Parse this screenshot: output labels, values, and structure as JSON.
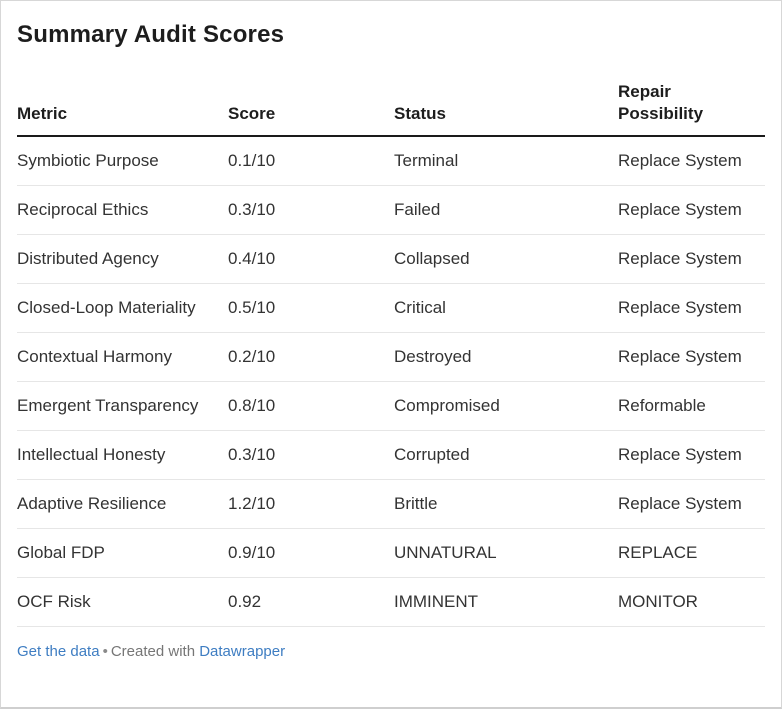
{
  "title": "Summary Audit Scores",
  "table": {
    "columns": [
      "Metric",
      "Score",
      "Status",
      "Repair Possibility"
    ],
    "rows": [
      {
        "metric": "Symbiotic Purpose",
        "score": "0.1/10",
        "status": "Terminal",
        "repair": "Replace System"
      },
      {
        "metric": "Reciprocal Ethics",
        "score": "0.3/10",
        "status": "Failed",
        "repair": "Replace System"
      },
      {
        "metric": "Distributed Agency",
        "score": "0.4/10",
        "status": "Collapsed",
        "repair": "Replace System"
      },
      {
        "metric": "Closed-Loop Materiality",
        "score": "0.5/10",
        "status": "Critical",
        "repair": "Replace System"
      },
      {
        "metric": "Contextual Harmony",
        "score": "0.2/10",
        "status": "Destroyed",
        "repair": "Replace System"
      },
      {
        "metric": "Emergent Transparency",
        "score": "0.8/10",
        "status": "Compromised",
        "repair": "Reformable"
      },
      {
        "metric": "Intellectual Honesty",
        "score": "0.3/10",
        "status": "Corrupted",
        "repair": "Replace System"
      },
      {
        "metric": "Adaptive Resilience",
        "score": "1.2/10",
        "status": "Brittle",
        "repair": "Replace System"
      },
      {
        "metric": "Global FDP",
        "score": "0.9/10",
        "status": "UNNATURAL",
        "repair": "REPLACE"
      },
      {
        "metric": "OCF Risk",
        "score": "0.92",
        "status": "IMMINENT",
        "repair": "MONITOR"
      }
    ]
  },
  "footer": {
    "get_data_label": "Get the data",
    "separator": "•",
    "created_with_label": "Created with",
    "brand_label": "Datawrapper"
  },
  "colors": {
    "link_blue": "#3e7dc2",
    "heading_text": "#1d1d1d",
    "body_text": "#333333",
    "header_rule": "#1a1a1a",
    "row_separator": "#e6e6e6",
    "footer_gray": "#767676",
    "canvas_border": "#d7d7d7",
    "background": "#ffffff"
  }
}
